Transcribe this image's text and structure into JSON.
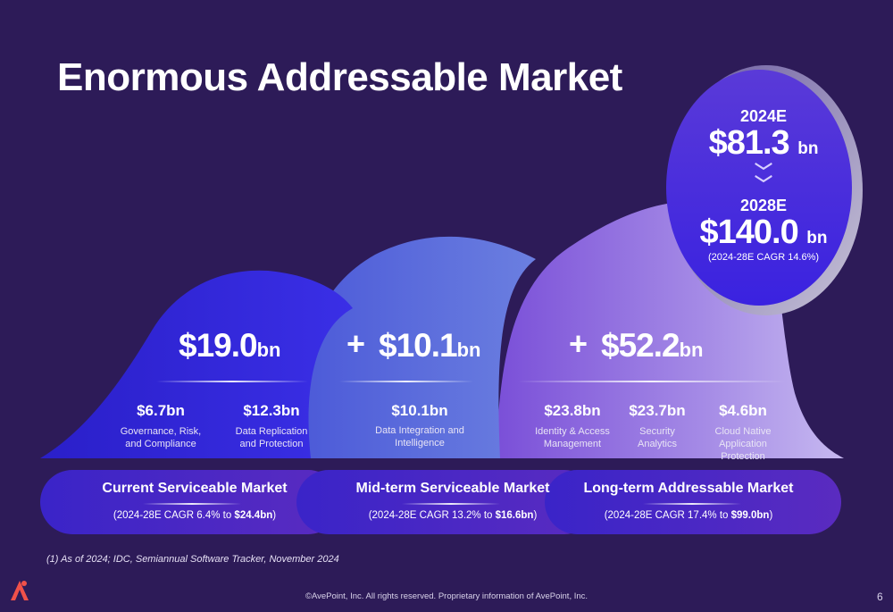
{
  "title": "Enormous Addressable Market",
  "current": {
    "total_value": "$19.0",
    "total_unit": "bn",
    "items": [
      {
        "value": "$6.7bn",
        "label": "Governance, Risk, and Compliance"
      },
      {
        "value": "$12.3bn",
        "label": "Data Replication and Protection"
      }
    ]
  },
  "midterm": {
    "plus": "+",
    "total_value": "$10.1",
    "total_unit": "bn",
    "items": [
      {
        "value": "$10.1bn",
        "label": "Data Integration and Intelligence"
      }
    ]
  },
  "longterm": {
    "plus": "+",
    "total_value": "$52.2",
    "total_unit": "bn",
    "items": [
      {
        "value": "$23.8bn",
        "label": "Identity & Access Management"
      },
      {
        "value": "$23.7bn",
        "label": "Security Analytics"
      },
      {
        "value": "$4.6bn",
        "label": "Cloud Native Application Protection"
      }
    ]
  },
  "pills": [
    {
      "title": "Current Serviceable Market",
      "cagr_prefix": "(2024-28E CAGR 6.4% to ",
      "cagr_bold": "$24.4bn",
      "cagr_suffix": ")"
    },
    {
      "title": "Mid-term Serviceable Market",
      "cagr_prefix": "(2024-28E CAGR 13.2% to ",
      "cagr_bold": "$16.6bn",
      "cagr_suffix": ")"
    },
    {
      "title": "Long-term Addressable Market",
      "cagr_prefix": "(2024-28E CAGR 17.4% to ",
      "cagr_bold": "$99.0bn",
      "cagr_suffix": ")"
    }
  ],
  "circle": {
    "year_2024": "2024E",
    "value_2024": "$81.3",
    "unit_2024": "bn",
    "chevron_icon": "double-chevron-down-icon",
    "year_2028": "2028E",
    "value_2028": "$140.0",
    "unit_2028": "bn",
    "note": "(2024-28E CAGR 14.6%)"
  },
  "footnote": "(1)  As of 2024; IDC, Semiannual Software Tracker, November 2024",
  "footer": "©AvePoint, Inc. All rights reserved. Proprietary information of AvePoint, Inc.",
  "page_number": "6",
  "logo_icon": "avepoint-logo-icon",
  "colors": {
    "background": "#2d1b58",
    "current": "#3325d8",
    "midterm": "#5b6fdc",
    "longterm": "#9b82e0",
    "circle": "#4a2fe0",
    "logo": "#f0514a"
  }
}
